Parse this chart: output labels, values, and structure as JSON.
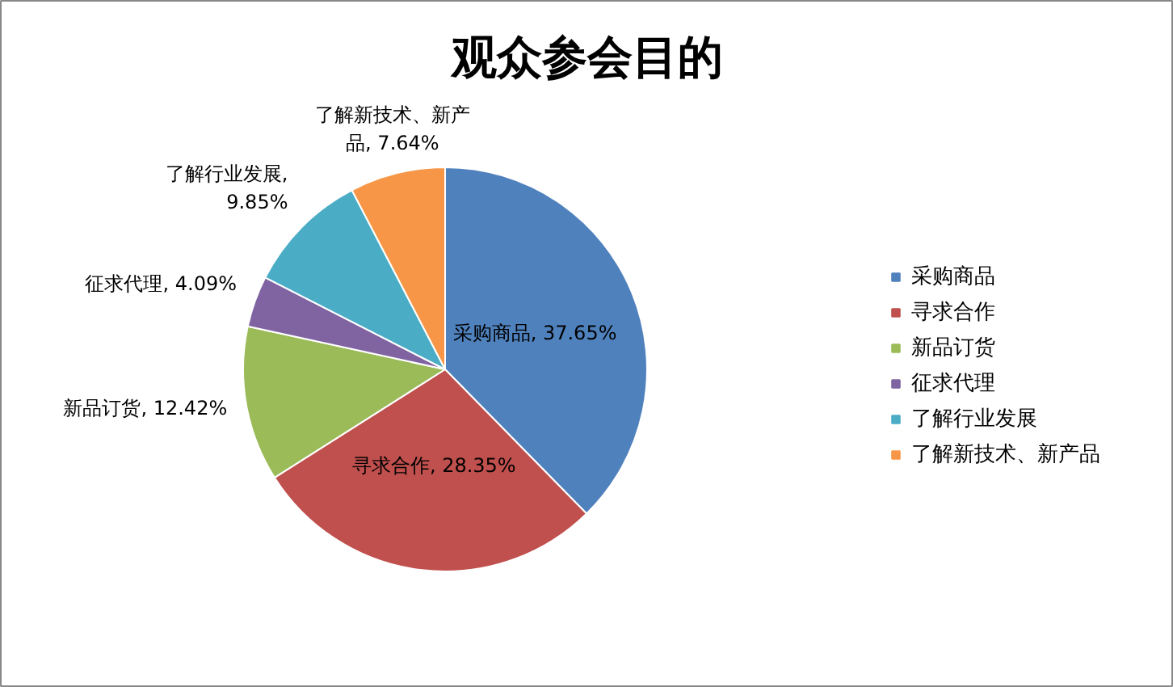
{
  "chart_data": {
    "type": "pie",
    "title": "观众参会目的",
    "categories": [
      "采购商品",
      "寻求合作",
      "新品订货",
      "征求代理",
      "了解行业发展",
      "了解新技术、新产品"
    ],
    "values": [
      37.65,
      28.35,
      12.42,
      4.09,
      9.85,
      7.64
    ],
    "colors": [
      "#4f81bd",
      "#c0504d",
      "#9bbb59",
      "#8064a2",
      "#4bacc6",
      "#f79646"
    ],
    "value_labels": [
      "采购商品, 37.65%",
      "寻求合作, 28.35%",
      "新品订货, 12.42%",
      "征求代理, 4.09%",
      "了解行业发展, 9.85%",
      "了解新技术、新产品, 7.64%"
    ],
    "legend": "right"
  }
}
